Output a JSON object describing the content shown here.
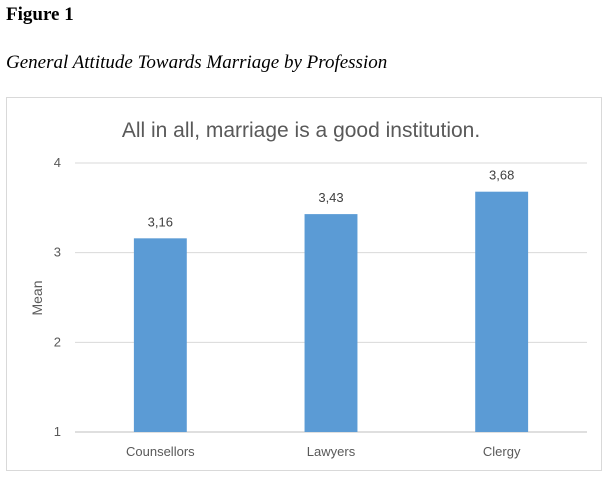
{
  "figure": {
    "label": "Figure 1",
    "caption": "General Attitude Towards Marriage by Profession"
  },
  "chart_data": {
    "type": "bar",
    "title": "All in all,  marriage is a good institution.",
    "xlabel": "",
    "ylabel": "Mean",
    "categories": [
      "Counsellors",
      "Lawyers",
      "Clergy"
    ],
    "values": [
      3.16,
      3.43,
      3.68
    ],
    "data_labels": [
      "3,16",
      "3,43",
      "3,68"
    ],
    "ylim": [
      1,
      4
    ],
    "yticks": [
      1,
      2,
      3,
      4
    ],
    "ytick_labels": [
      "1",
      "2",
      "3",
      "4"
    ],
    "grid": true,
    "legend": "none",
    "bar_color": "#5b9bd5"
  }
}
